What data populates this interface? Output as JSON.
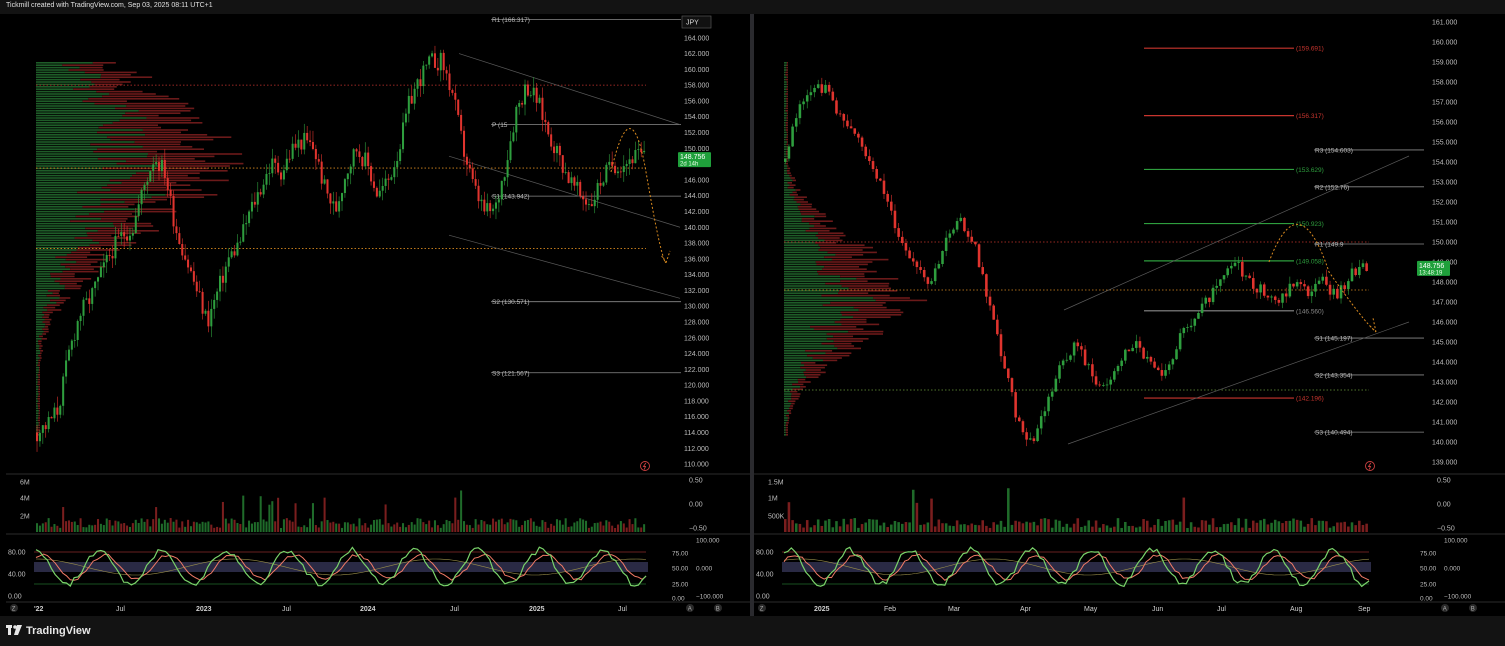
{
  "header": {
    "credit": "Tickmill created with TradingView.com, Sep 03, 2025 08:11 UTC+1"
  },
  "footer": {
    "brand": "TradingView"
  },
  "colors": {
    "up": "#2e9e3e",
    "down": "#e0342e",
    "volume_up": "#1f6b2a",
    "volume_down": "#7a1e1e",
    "pivot_line": "#7a7a7a",
    "dotted_orange": "#d98a1f",
    "dotted_red": "#c8352e",
    "price_tag": "#1fa03b",
    "stoch_green": "#7ad36a",
    "stoch_red": "#f07a66"
  },
  "left_chart": {
    "currency": "JPY",
    "price_tag": {
      "value": "148.756",
      "countdown": "2d 14h"
    },
    "price_axis": [
      "164.000",
      "162.000",
      "160.000",
      "158.000",
      "156.000",
      "154.000",
      "152.000",
      "150.000",
      "148.000",
      "146.000",
      "144.000",
      "142.000",
      "140.000",
      "138.000",
      "136.000",
      "134.000",
      "132.000",
      "130.000",
      "128.000",
      "126.000",
      "124.000",
      "122.000",
      "120.000",
      "118.000",
      "116.000",
      "114.000",
      "112.000",
      "110.000"
    ],
    "pivots": [
      {
        "label": "R1 (166.317)",
        "value": 166.317
      },
      {
        "label": "P (15",
        "value": 153.0
      },
      {
        "label": "S1 (143.942)",
        "value": 143.942
      },
      {
        "label": "S2 (130.571)",
        "value": 130.571
      },
      {
        "label": "S3 (121.567)",
        "value": 121.567
      }
    ],
    "volume_axis": [
      "6M",
      "4M",
      "2M"
    ],
    "osc_axis_right": [
      "0.50",
      "0.00",
      "−0.50"
    ],
    "stoch_axis_left": [
      "80.00",
      "40.00",
      "0.00"
    ],
    "stoch_axis_right": [
      "75.00",
      "50.00",
      "25.00",
      "0.00"
    ],
    "stoch_axis_right2": [
      "100.000",
      "0.000",
      "−100.000"
    ],
    "time_axis": [
      "'22",
      "Jul",
      "2023",
      "Jul",
      "2024",
      "Jul",
      "2025",
      "Jul"
    ]
  },
  "right_chart": {
    "price_tag": {
      "value": "148.756",
      "countdown": "13:48:19"
    },
    "price_axis": [
      "161.000",
      "160.000",
      "159.000",
      "158.000",
      "157.000",
      "156.000",
      "155.000",
      "154.000",
      "153.000",
      "152.000",
      "151.000",
      "150.000",
      "149.000",
      "148.000",
      "147.000",
      "146.000",
      "145.000",
      "144.000",
      "143.000",
      "142.000",
      "141.000",
      "140.000",
      "139.000"
    ],
    "levels": [
      {
        "label": "(159.691)",
        "value": 159.691,
        "color": "#c8352e"
      },
      {
        "label": "(156.317)",
        "value": 156.317,
        "color": "#c8352e"
      },
      {
        "label": "(153.629)",
        "value": 153.629,
        "color": "#2e9e3e"
      },
      {
        "label": "(150.923)",
        "value": 150.923,
        "color": "#2e9e3e"
      },
      {
        "label": "(149.058)",
        "value": 149.058,
        "color": "#2e9e3e"
      },
      {
        "label": "(146.560)",
        "value": 146.56,
        "color": "#8a8a8a"
      },
      {
        "label": "(142.196)",
        "value": 142.196,
        "color": "#c8352e"
      }
    ],
    "pivots": [
      {
        "label": "R3 (154.603)",
        "value": 154.603
      },
      {
        "label": "R2 (152.76)",
        "value": 152.76
      },
      {
        "label": "R1 (149.9",
        "value": 149.9
      },
      {
        "label": "S1 (145.197)",
        "value": 145.197
      },
      {
        "label": "S2 (143.354)",
        "value": 143.354
      },
      {
        "label": "S3 (140.494)",
        "value": 140.494
      }
    ],
    "volume_axis": [
      "1.5M",
      "1M",
      "500K"
    ],
    "osc_axis_right": [
      "0.50",
      "0.00",
      "−0.50"
    ],
    "stoch_axis_left": [
      "80.00",
      "40.00",
      "0.00"
    ],
    "stoch_axis_right": [
      "75.00",
      "50.00",
      "25.00",
      "0.00"
    ],
    "stoch_axis_right2": [
      "100.000",
      "0.000",
      "−100.000"
    ],
    "time_axis": [
      "2025",
      "Feb",
      "Mar",
      "Apr",
      "May",
      "Jun",
      "Jul",
      "Aug",
      "Sep"
    ]
  },
  "chart_data": [
    {
      "type": "candlestick",
      "title": "",
      "ylim": [
        109,
        166
      ],
      "close_path": [
        114,
        115,
        117,
        124,
        129,
        131,
        134,
        137,
        139,
        140,
        145,
        149,
        147,
        140,
        136,
        132,
        128,
        132,
        136,
        138,
        142,
        145,
        148,
        147,
        150,
        151,
        150,
        145,
        142,
        147,
        150,
        148,
        144,
        146,
        150,
        156,
        159,
        161,
        161,
        157,
        150,
        145,
        142,
        142,
        148,
        155,
        158,
        156,
        152,
        149,
        146,
        144,
        143,
        146,
        148,
        148,
        149,
        149
      ],
      "markers": [
        "'22",
        "Jul",
        "2023",
        "Jul",
        "2024",
        "Jul",
        "2025",
        "Jul"
      ]
    },
    {
      "type": "candlestick",
      "title": "",
      "ylim": [
        138.5,
        161
      ],
      "close_path": [
        154,
        157,
        158,
        157.5,
        156,
        155,
        154,
        152,
        150,
        149,
        148,
        150,
        151,
        150,
        147,
        144,
        141,
        140,
        142,
        144,
        145,
        143.5,
        142.5,
        144,
        145,
        144,
        143,
        145,
        146,
        147,
        148,
        149,
        148,
        147.5,
        147,
        148,
        147.5,
        148,
        147.3,
        148.5,
        148.75
      ],
      "markers": [
        "2025",
        "Feb",
        "Mar",
        "Apr",
        "May",
        "Jun",
        "Jul",
        "Aug",
        "Sep"
      ]
    }
  ]
}
